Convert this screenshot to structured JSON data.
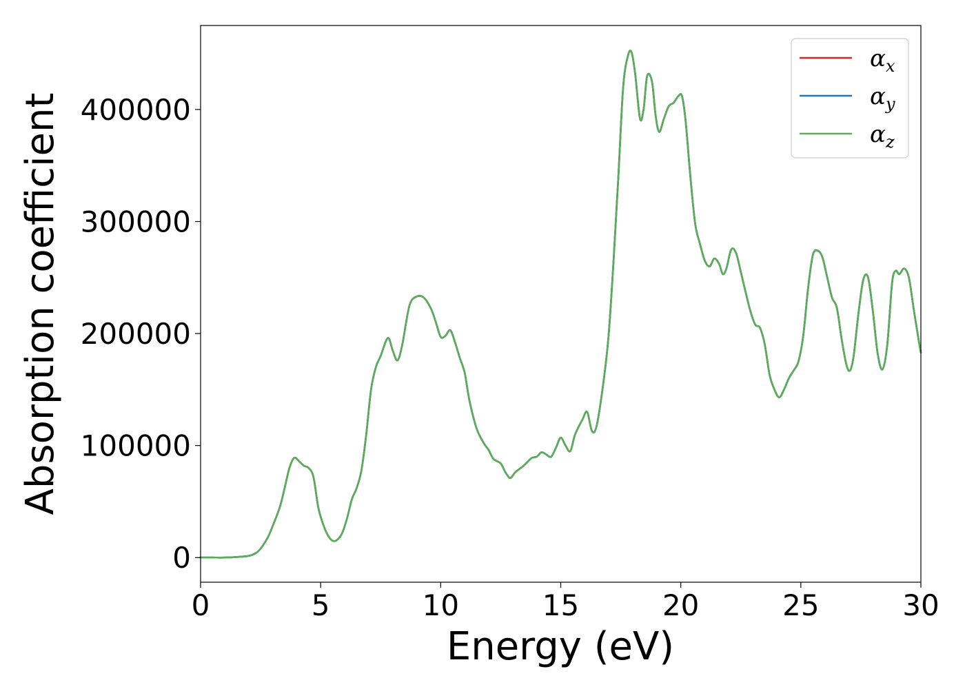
{
  "chart_data": {
    "type": "line",
    "title": "",
    "xlabel": "Energy (eV)",
    "ylabel": "Absorption coefficient",
    "xlim": [
      0,
      30
    ],
    "ylim": [
      -22000,
      475000
    ],
    "xticks": [
      0,
      5,
      10,
      15,
      20,
      25,
      30
    ],
    "yticks": [
      0,
      100000,
      200000,
      300000,
      400000
    ],
    "grid": false,
    "legend_position": "top-right",
    "x": [
      0,
      0.5,
      1.0,
      1.5,
      2.0,
      2.3,
      2.5,
      2.8,
      3.0,
      3.3,
      3.5,
      3.7,
      3.9,
      4.1,
      4.3,
      4.5,
      4.7,
      4.9,
      5.1,
      5.3,
      5.5,
      5.7,
      5.9,
      6.1,
      6.3,
      6.5,
      6.7,
      6.9,
      7.1,
      7.3,
      7.5,
      7.8,
      8.0,
      8.2,
      8.4,
      8.7,
      9.0,
      9.3,
      9.6,
      9.8,
      10.0,
      10.2,
      10.4,
      10.6,
      10.8,
      11.0,
      11.2,
      11.5,
      11.8,
      12.0,
      12.2,
      12.5,
      12.7,
      12.9,
      13.1,
      13.4,
      13.6,
      13.8,
      14.0,
      14.2,
      14.4,
      14.6,
      14.8,
      15.0,
      15.2,
      15.4,
      15.6,
      15.9,
      16.1,
      16.3,
      16.5,
      16.8,
      17.0,
      17.2,
      17.4,
      17.6,
      17.8,
      17.95,
      18.1,
      18.3,
      18.45,
      18.6,
      18.8,
      18.95,
      19.1,
      19.3,
      19.5,
      19.7,
      19.9,
      20.05,
      20.2,
      20.4,
      20.6,
      20.8,
      21.0,
      21.2,
      21.4,
      21.6,
      21.75,
      21.9,
      22.1,
      22.3,
      22.5,
      22.7,
      22.9,
      23.1,
      23.3,
      23.5,
      23.7,
      23.9,
      24.1,
      24.3,
      24.5,
      24.7,
      24.9,
      25.1,
      25.3,
      25.5,
      25.7,
      25.9,
      26.1,
      26.3,
      26.5,
      26.7,
      26.9,
      27.05,
      27.2,
      27.4,
      27.6,
      27.8,
      28.0,
      28.2,
      28.4,
      28.6,
      28.8,
      28.95,
      29.1,
      29.3,
      29.5,
      29.7,
      29.9,
      30.0
    ],
    "series": [
      {
        "name": "α_x",
        "color": "#d62728",
        "y": [
          0,
          0,
          0,
          500,
          1500,
          4000,
          8000,
          18000,
          28000,
          45000,
          62000,
          80000,
          89000,
          86000,
          82000,
          80000,
          72000,
          45000,
          30000,
          20000,
          15000,
          16000,
          22000,
          35000,
          52000,
          62000,
          78000,
          110000,
          150000,
          170000,
          180000,
          196000,
          185000,
          176000,
          190000,
          225000,
          233000,
          232000,
          222000,
          210000,
          197000,
          198000,
          203000,
          192000,
          178000,
          165000,
          140000,
          115000,
          102000,
          96000,
          88000,
          84000,
          76000,
          71000,
          76000,
          81000,
          85000,
          89000,
          90000,
          94000,
          92000,
          90000,
          98000,
          107000,
          100000,
          95000,
          110000,
          123000,
          130000,
          113000,
          118000,
          160000,
          200000,
          265000,
          340000,
          420000,
          448000,
          451000,
          432000,
          392000,
          400000,
          430000,
          425000,
          395000,
          380000,
          392000,
          403000,
          406000,
          412000,
          412000,
          390000,
          340000,
          298000,
          280000,
          265000,
          260000,
          267000,
          262000,
          253000,
          258000,
          275000,
          272000,
          255000,
          237000,
          220000,
          208000,
          205000,
          190000,
          163000,
          150000,
          143000,
          150000,
          160000,
          167000,
          175000,
          198000,
          240000,
          270000,
          274000,
          268000,
          250000,
          232000,
          223000,
          195000,
          172000,
          167000,
          180000,
          218000,
          248000,
          250000,
          220000,
          182000,
          168000,
          190000,
          245000,
          256000,
          253000,
          258000,
          250000,
          222000,
          195000,
          183000
        ]
      },
      {
        "name": "α_y",
        "color": "#1f77b4",
        "y": [
          0,
          0,
          0,
          500,
          1500,
          4000,
          8000,
          18000,
          28000,
          45000,
          62000,
          80000,
          89000,
          86000,
          82000,
          80000,
          72000,
          45000,
          30000,
          20000,
          15000,
          16000,
          22000,
          35000,
          52000,
          62000,
          78000,
          110000,
          150000,
          170000,
          180000,
          196000,
          185000,
          176000,
          190000,
          225000,
          233000,
          232000,
          222000,
          210000,
          197000,
          198000,
          203000,
          192000,
          178000,
          165000,
          140000,
          115000,
          102000,
          96000,
          88000,
          84000,
          76000,
          71000,
          76000,
          81000,
          85000,
          89000,
          90000,
          94000,
          92000,
          90000,
          98000,
          107000,
          100000,
          95000,
          110000,
          123000,
          130000,
          113000,
          118000,
          160000,
          200000,
          265000,
          340000,
          420000,
          448000,
          451000,
          432000,
          392000,
          400000,
          430000,
          425000,
          395000,
          380000,
          392000,
          403000,
          406000,
          412000,
          412000,
          390000,
          340000,
          298000,
          280000,
          265000,
          260000,
          267000,
          262000,
          253000,
          258000,
          275000,
          272000,
          255000,
          237000,
          220000,
          208000,
          205000,
          190000,
          163000,
          150000,
          143000,
          150000,
          160000,
          167000,
          175000,
          198000,
          240000,
          270000,
          274000,
          268000,
          250000,
          232000,
          223000,
          195000,
          172000,
          167000,
          180000,
          218000,
          248000,
          250000,
          220000,
          182000,
          168000,
          190000,
          245000,
          256000,
          253000,
          258000,
          250000,
          222000,
          195000,
          183000
        ]
      },
      {
        "name": "α_z",
        "color": "#5aae5a",
        "y": [
          0,
          0,
          0,
          500,
          1500,
          4000,
          8000,
          18000,
          28000,
          45000,
          62000,
          80000,
          89000,
          86000,
          82000,
          80000,
          72000,
          45000,
          30000,
          20000,
          15000,
          16000,
          22000,
          35000,
          52000,
          62000,
          78000,
          110000,
          150000,
          170000,
          180000,
          196000,
          185000,
          176000,
          190000,
          225000,
          233000,
          232000,
          222000,
          210000,
          197000,
          198000,
          203000,
          192000,
          178000,
          165000,
          140000,
          115000,
          102000,
          96000,
          88000,
          84000,
          76000,
          71000,
          76000,
          81000,
          85000,
          89000,
          90000,
          94000,
          92000,
          90000,
          98000,
          107000,
          100000,
          95000,
          110000,
          123000,
          130000,
          113000,
          118000,
          160000,
          200000,
          265000,
          340000,
          420000,
          448000,
          451000,
          432000,
          392000,
          400000,
          430000,
          425000,
          395000,
          380000,
          392000,
          403000,
          406000,
          412000,
          412000,
          390000,
          340000,
          298000,
          280000,
          265000,
          260000,
          267000,
          262000,
          253000,
          258000,
          275000,
          272000,
          255000,
          237000,
          220000,
          208000,
          205000,
          190000,
          163000,
          150000,
          143000,
          150000,
          160000,
          167000,
          175000,
          198000,
          240000,
          270000,
          274000,
          268000,
          250000,
          232000,
          223000,
          195000,
          172000,
          167000,
          180000,
          218000,
          248000,
          250000,
          220000,
          182000,
          168000,
          190000,
          245000,
          256000,
          253000,
          258000,
          250000,
          222000,
          195000,
          183000
        ]
      }
    ],
    "legend": [
      {
        "symbol": "α",
        "sub": "x",
        "color": "#d62728"
      },
      {
        "symbol": "α",
        "sub": "y",
        "color": "#1f77b4"
      },
      {
        "symbol": "α",
        "sub": "z",
        "color": "#5aae5a"
      }
    ]
  }
}
